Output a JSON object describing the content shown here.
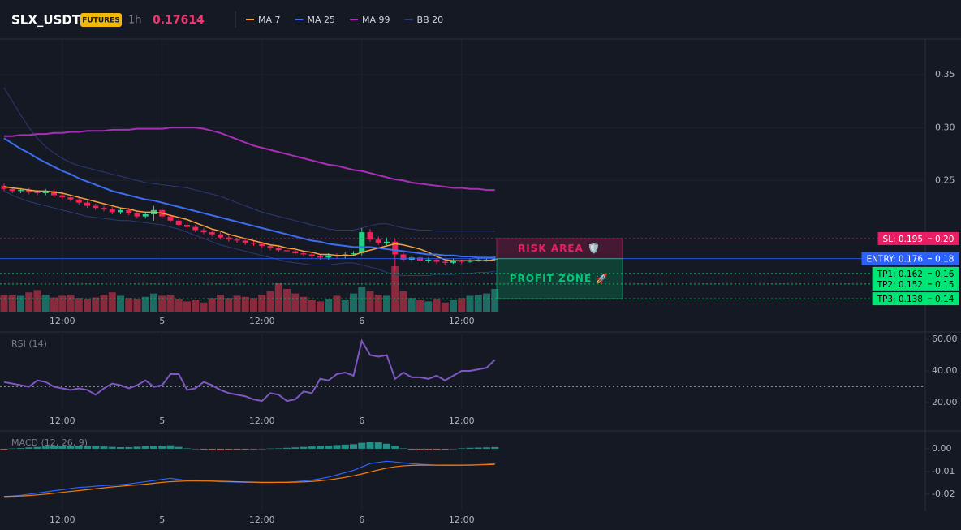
{
  "chart_data": {
    "type": "candlestick",
    "symbol": "SLX_USDT",
    "badge": "FUTURES",
    "interval": "1h",
    "last_price": 0.17614,
    "categories": [
      null,
      null,
      null,
      null,
      null,
      null,
      null,
      "12:00",
      null,
      null,
      null,
      null,
      null,
      null,
      null,
      null,
      null,
      null,
      null,
      "5",
      null,
      null,
      null,
      null,
      null,
      null,
      null,
      null,
      null,
      null,
      null,
      "12:00",
      null,
      null,
      null,
      null,
      null,
      null,
      null,
      null,
      null,
      null,
      null,
      "6",
      null,
      null,
      null,
      null,
      null,
      null,
      null,
      null,
      null,
      null,
      null,
      "12:00",
      null,
      null,
      null,
      null
    ],
    "up_color": "#22d38a",
    "down_color": "#f0245a",
    "candles": [
      [
        0.245,
        0.247,
        0.24,
        0.242
      ],
      [
        0.242,
        0.244,
        0.238,
        0.24
      ],
      [
        0.24,
        0.243,
        0.238,
        0.241
      ],
      [
        0.241,
        0.243,
        0.237,
        0.239
      ],
      [
        0.239,
        0.241,
        0.236,
        0.238
      ],
      [
        0.238,
        0.242,
        0.236,
        0.24
      ],
      [
        0.24,
        0.242,
        0.234,
        0.236
      ],
      [
        0.236,
        0.238,
        0.232,
        0.234
      ],
      [
        0.234,
        0.236,
        0.23,
        0.232
      ],
      [
        0.232,
        0.234,
        0.227,
        0.229
      ],
      [
        0.229,
        0.231,
        0.224,
        0.226
      ],
      [
        0.226,
        0.228,
        0.222,
        0.224
      ],
      [
        0.224,
        0.226,
        0.221,
        0.223
      ],
      [
        0.223,
        0.225,
        0.218,
        0.22
      ],
      [
        0.22,
        0.224,
        0.218,
        0.222
      ],
      [
        0.222,
        0.224,
        0.217,
        0.219
      ],
      [
        0.219,
        0.221,
        0.214,
        0.216
      ],
      [
        0.216,
        0.22,
        0.214,
        0.218
      ],
      [
        0.218,
        0.226,
        0.212,
        0.222
      ],
      [
        0.222,
        0.224,
        0.214,
        0.216
      ],
      [
        0.216,
        0.218,
        0.21,
        0.212
      ],
      [
        0.212,
        0.214,
        0.206,
        0.208
      ],
      [
        0.208,
        0.21,
        0.204,
        0.206
      ],
      [
        0.206,
        0.208,
        0.201,
        0.203
      ],
      [
        0.203,
        0.205,
        0.199,
        0.201
      ],
      [
        0.201,
        0.203,
        0.197,
        0.199
      ],
      [
        0.199,
        0.201,
        0.194,
        0.196
      ],
      [
        0.196,
        0.198,
        0.192,
        0.194
      ],
      [
        0.194,
        0.196,
        0.191,
        0.193
      ],
      [
        0.193,
        0.195,
        0.189,
        0.191
      ],
      [
        0.191,
        0.193,
        0.188,
        0.19
      ],
      [
        0.19,
        0.192,
        0.186,
        0.188
      ],
      [
        0.188,
        0.19,
        0.184,
        0.186
      ],
      [
        0.186,
        0.188,
        0.182,
        0.184
      ],
      [
        0.184,
        0.186,
        0.181,
        0.183
      ],
      [
        0.183,
        0.185,
        0.179,
        0.181
      ],
      [
        0.181,
        0.183,
        0.178,
        0.18
      ],
      [
        0.18,
        0.182,
        0.176,
        0.178
      ],
      [
        0.178,
        0.18,
        0.175,
        0.177
      ],
      [
        0.177,
        0.181,
        0.175,
        0.179
      ],
      [
        0.179,
        0.181,
        0.176,
        0.178
      ],
      [
        0.178,
        0.182,
        0.176,
        0.18
      ],
      [
        0.18,
        0.183,
        0.178,
        0.181
      ],
      [
        0.181,
        0.205,
        0.179,
        0.201
      ],
      [
        0.201,
        0.204,
        0.192,
        0.194
      ],
      [
        0.194,
        0.197,
        0.189,
        0.191
      ],
      [
        0.191,
        0.196,
        0.189,
        0.192
      ],
      [
        0.192,
        0.195,
        0.165,
        0.18
      ],
      [
        0.18,
        0.182,
        0.173,
        0.175
      ],
      [
        0.175,
        0.179,
        0.173,
        0.177
      ],
      [
        0.177,
        0.178,
        0.172,
        0.174
      ],
      [
        0.174,
        0.177,
        0.172,
        0.175
      ],
      [
        0.175,
        0.176,
        0.171,
        0.173
      ],
      [
        0.173,
        0.175,
        0.17,
        0.172
      ],
      [
        0.172,
        0.176,
        0.171,
        0.174
      ],
      [
        0.174,
        0.175,
        0.171,
        0.173
      ],
      [
        0.173,
        0.176,
        0.172,
        0.174
      ],
      [
        0.174,
        0.177,
        0.173,
        0.175
      ],
      [
        0.175,
        0.177,
        0.173,
        0.175
      ],
      [
        0.175,
        0.178,
        0.174,
        0.176
      ]
    ],
    "volume": [
      30,
      30,
      28,
      34,
      38,
      30,
      25,
      28,
      30,
      24,
      22,
      25,
      30,
      34,
      28,
      24,
      22,
      26,
      32,
      28,
      30,
      22,
      18,
      20,
      16,
      24,
      30,
      24,
      28,
      26,
      24,
      30,
      36,
      50,
      40,
      32,
      26,
      20,
      18,
      22,
      28,
      20,
      32,
      44,
      36,
      30,
      28,
      80,
      36,
      24,
      20,
      18,
      22,
      16,
      20,
      24,
      28,
      30,
      32,
      40
    ],
    "vlim": [
      0,
      100
    ],
    "volume_up_color": "#1d6b63",
    "volume_down_color": "#8a2a3e",
    "series": [
      {
        "name": "MA 7",
        "color": "#f7a23b",
        "values": [
          0.244,
          0.243,
          0.242,
          0.241,
          0.24,
          0.24,
          0.239,
          0.238,
          0.236,
          0.234,
          0.232,
          0.23,
          0.228,
          0.226,
          0.224,
          0.223,
          0.221,
          0.22,
          0.22,
          0.219,
          0.217,
          0.215,
          0.213,
          0.21,
          0.207,
          0.204,
          0.202,
          0.199,
          0.197,
          0.195,
          0.193,
          0.191,
          0.189,
          0.188,
          0.186,
          0.185,
          0.183,
          0.182,
          0.18,
          0.18,
          0.179,
          0.179,
          0.179,
          0.182,
          0.184,
          0.186,
          0.188,
          0.19,
          0.189,
          0.187,
          0.185,
          0.182,
          0.178,
          0.175,
          0.174,
          0.174,
          0.174,
          0.174,
          0.174,
          0.175
        ]
      },
      {
        "name": "MA 25",
        "color": "#3d6ef0",
        "values": [
          0.29,
          0.285,
          0.28,
          0.276,
          0.271,
          0.267,
          0.263,
          0.259,
          0.256,
          0.252,
          0.249,
          0.246,
          0.243,
          0.24,
          0.238,
          0.236,
          0.234,
          0.232,
          0.231,
          0.229,
          0.227,
          0.225,
          0.223,
          0.221,
          0.219,
          0.217,
          0.215,
          0.213,
          0.211,
          0.209,
          0.207,
          0.205,
          0.203,
          0.201,
          0.199,
          0.197,
          0.195,
          0.193,
          0.192,
          0.19,
          0.189,
          0.188,
          0.187,
          0.187,
          0.187,
          0.186,
          0.185,
          0.184,
          0.183,
          0.182,
          0.181,
          0.18,
          0.18,
          0.179,
          0.179,
          0.178,
          0.178,
          0.177,
          0.177,
          0.177
        ]
      },
      {
        "name": "MA 99",
        "color": "#a82fb5",
        "values": [
          0.292,
          0.292,
          0.293,
          0.293,
          0.294,
          0.294,
          0.295,
          0.295,
          0.296,
          0.296,
          0.297,
          0.297,
          0.297,
          0.298,
          0.298,
          0.298,
          0.299,
          0.299,
          0.299,
          0.299,
          0.3,
          0.3,
          0.3,
          0.3,
          0.299,
          0.297,
          0.295,
          0.292,
          0.289,
          0.286,
          0.283,
          0.281,
          0.279,
          0.277,
          0.275,
          0.273,
          0.271,
          0.269,
          0.267,
          0.265,
          0.264,
          0.262,
          0.26,
          0.259,
          0.257,
          0.255,
          0.253,
          0.251,
          0.25,
          0.248,
          0.247,
          0.246,
          0.245,
          0.244,
          0.243,
          0.243,
          0.242,
          0.242,
          0.241,
          0.241
        ]
      },
      {
        "name": "BB 20",
        "color": "#2b3a78",
        "values": [
          0.338,
          0.325,
          0.312,
          0.3,
          0.29,
          0.282,
          0.276,
          0.271,
          0.267,
          0.264,
          0.262,
          0.26,
          0.258,
          0.256,
          0.254,
          0.252,
          0.25,
          0.248,
          0.247,
          0.246,
          0.245,
          0.244,
          0.243,
          0.241,
          0.239,
          0.237,
          0.235,
          0.232,
          0.229,
          0.226,
          0.223,
          0.22,
          0.218,
          0.216,
          0.214,
          0.212,
          0.21,
          0.208,
          0.206,
          0.204,
          0.203,
          0.203,
          0.203,
          0.205,
          0.207,
          0.209,
          0.209,
          0.207,
          0.205,
          0.204,
          0.203,
          0.203,
          0.202,
          0.202,
          0.202,
          0.202,
          0.202,
          0.202,
          0.202,
          0.202
        ],
        "lower": [
          0.24,
          0.236,
          0.233,
          0.23,
          0.228,
          0.226,
          0.224,
          0.222,
          0.22,
          0.218,
          0.216,
          0.215,
          0.214,
          0.213,
          0.212,
          0.212,
          0.211,
          0.21,
          0.209,
          0.208,
          0.206,
          0.204,
          0.201,
          0.198,
          0.195,
          0.192,
          0.189,
          0.187,
          0.185,
          0.183,
          0.181,
          0.179,
          0.177,
          0.175,
          0.173,
          0.172,
          0.171,
          0.17,
          0.17,
          0.17,
          0.171,
          0.172,
          0.172,
          0.17,
          0.168,
          0.166,
          0.163,
          0.161,
          0.16,
          0.16,
          0.16,
          0.16,
          0.161,
          0.161,
          0.161,
          0.162,
          0.162,
          0.163,
          0.163,
          0.164
        ]
      }
    ],
    "ylim": [
      0.125,
      0.384
    ],
    "yticks": [
      0.35,
      {
        "value": 0.3,
        "label": "0.30"
      },
      0.25
    ],
    "levels": [
      {
        "label": "SL: 0.195",
        "value": 0.195,
        "axis_label": "0.20",
        "color": "#e91e63",
        "text_color": "#ffffff",
        "line_style": "dotted"
      },
      {
        "label": "ENTRY: 0.176",
        "value": 0.176,
        "axis_label": "0.18",
        "color": "#2962ff",
        "text_color": "#ffffff",
        "line_style": "solid"
      },
      {
        "label": "TP1: 0.162",
        "value": 0.162,
        "axis_label": "0.16",
        "color": "#00e676",
        "text_color": "#000000",
        "line_style": "dotted"
      },
      {
        "label": "TP2: 0.152",
        "value": 0.152,
        "axis_label": "0.15",
        "color": "#00e676",
        "text_color": "#000000",
        "line_style": "dotted"
      },
      {
        "label": "TP3: 0.138",
        "value": 0.138,
        "axis_label": "0.14",
        "color": "#00e676",
        "text_color": "#000000",
        "line_style": "dotted"
      }
    ],
    "zones": [
      {
        "label": "RISK AREA 🛡️",
        "color": "#e91e63"
      },
      {
        "label": "PROFIT ZONE 🚀",
        "color": "#00c878"
      }
    ],
    "rsi": {
      "label": "RSI (14)",
      "color": "#7e57c2",
      "values": [
        33,
        32,
        31,
        30,
        34,
        33,
        30,
        29,
        28,
        29,
        28,
        25,
        29,
        32,
        31,
        29,
        31,
        34,
        30,
        31,
        38,
        38,
        28,
        29,
        33,
        31,
        28,
        26,
        25,
        24,
        22,
        21,
        26,
        25,
        21,
        22,
        27,
        26,
        35,
        34,
        38,
        39,
        37,
        59,
        50,
        49,
        50,
        35,
        39,
        36,
        36,
        35,
        37,
        34,
        37,
        40,
        40,
        41,
        42,
        47
      ],
      "ylim": [
        15.4,
        63.1
      ],
      "yticks": [
        {
          "value": 60,
          "label": "60.00"
        },
        {
          "value": 40,
          "label": "40.00"
        },
        {
          "value": 20,
          "label": "20.00"
        }
      ],
      "reference_line": 30
    },
    "macd": {
      "label": "MACD (12, 26, 9)",
      "macd": {
        "color": "#2962ff",
        "values": [
          -0.021,
          -0.0208,
          -0.0205,
          -0.02,
          -0.0195,
          -0.019,
          -0.0185,
          -0.018,
          -0.0175,
          -0.017,
          -0.0168,
          -0.0165,
          -0.0162,
          -0.016,
          -0.0158,
          -0.0155,
          -0.015,
          -0.0145,
          -0.014,
          -0.0135,
          -0.013,
          -0.0135,
          -0.014,
          -0.014,
          -0.0142,
          -0.0143,
          -0.0145,
          -0.0146,
          -0.0147,
          -0.0148,
          -0.0148,
          -0.0149,
          -0.0149,
          -0.0148,
          -0.0147,
          -0.0145,
          -0.0142,
          -0.0138,
          -0.0132,
          -0.0125,
          -0.0115,
          -0.0105,
          -0.0095,
          -0.008,
          -0.0065,
          -0.006,
          -0.0055,
          -0.0058,
          -0.0062,
          -0.0066,
          -0.0068,
          -0.007,
          -0.0072,
          -0.0073,
          -0.0073,
          -0.0072,
          -0.0071,
          -0.007,
          -0.0068,
          -0.0065
        ]
      },
      "signal": {
        "color": "#f57c00",
        "values": [
          -0.021,
          -0.0209,
          -0.0208,
          -0.0206,
          -0.0203,
          -0.02,
          -0.0196,
          -0.0192,
          -0.0188,
          -0.0184,
          -0.018,
          -0.0176,
          -0.0172,
          -0.0168,
          -0.0165,
          -0.0162,
          -0.0159,
          -0.0156,
          -0.0152,
          -0.0148,
          -0.0145,
          -0.0143,
          -0.0142,
          -0.0142,
          -0.0142,
          -0.0142,
          -0.0143,
          -0.0144,
          -0.0145,
          -0.0146,
          -0.0147,
          -0.0148,
          -0.0148,
          -0.0148,
          -0.0148,
          -0.0147,
          -0.0146,
          -0.0144,
          -0.0141,
          -0.0137,
          -0.0132,
          -0.0126,
          -0.0119,
          -0.0111,
          -0.0102,
          -0.0093,
          -0.0085,
          -0.0079,
          -0.0075,
          -0.0073,
          -0.0072,
          -0.0072,
          -0.0072,
          -0.0072,
          -0.0072,
          -0.0072,
          -0.0072,
          -0.0071,
          -0.007,
          -0.0069
        ]
      },
      "histogram": {
        "up_color": "#26a69a",
        "down_color": "#ef5350",
        "values": [
          -0.0006,
          0.0001,
          0.0003,
          0.0006,
          0.0008,
          0.001,
          0.0011,
          0.0012,
          0.0013,
          0.0014,
          0.0012,
          0.0011,
          0.001,
          0.0008,
          0.0007,
          0.0007,
          0.0009,
          0.0011,
          0.0012,
          0.0013,
          0.0015,
          0.0008,
          0.0002,
          -0.0002,
          -0.0004,
          -0.0006,
          -0.0007,
          -0.0006,
          -0.0005,
          -0.0004,
          -0.0003,
          -0.0002,
          0.0001,
          0.0002,
          0.0004,
          0.0006,
          0.0008,
          0.001,
          0.0012,
          0.0014,
          0.0016,
          0.0018,
          0.002,
          0.0026,
          0.003,
          0.0028,
          0.0022,
          0.0012,
          0.0002,
          -0.0004,
          -0.0006,
          -0.0006,
          -0.0005,
          -0.0004,
          -0.0001,
          0.0002,
          0.0004,
          0.0005,
          0.0006,
          0.0007
        ]
      },
      "ylim": [
        -0.0268,
        0.0064
      ],
      "yticks": [
        {
          "value": 0,
          "label": "0.00"
        },
        {
          "value": -0.01,
          "label": "-0.01"
        },
        {
          "value": -0.02,
          "label": "-0.02"
        }
      ]
    }
  }
}
